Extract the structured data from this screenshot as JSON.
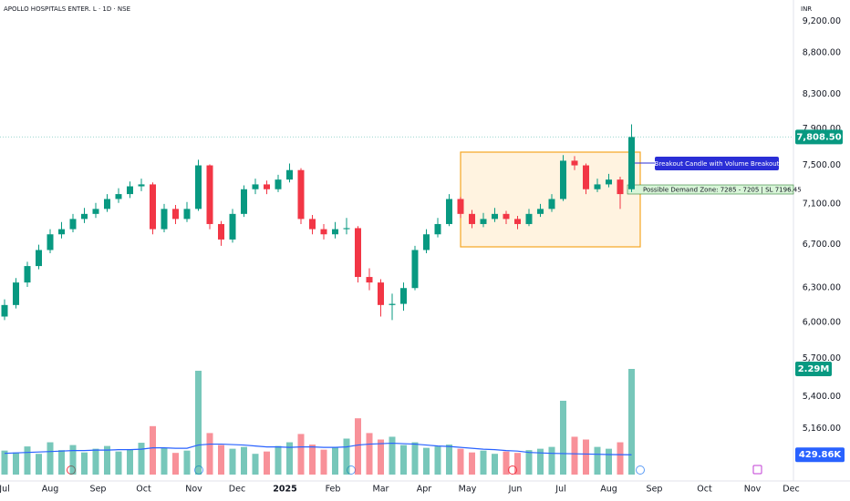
{
  "chart_data": {
    "type": "candlestick",
    "title": "APOLLO HOSPITALS ENTER. L · 1D · NSE",
    "currency": "INR",
    "log_scale": true,
    "up_color": "#089981",
    "down_color": "#f23645",
    "ylim": [
      4777,
      9487
    ],
    "yticks": [
      {
        "value": 9200,
        "label": "9,200.00"
      },
      {
        "value": 8800,
        "label": "8,800.00"
      },
      {
        "value": 8300,
        "label": "8,300.00"
      },
      {
        "value": 7900,
        "label": "7,900.00"
      },
      {
        "value": 7500,
        "label": "7,500.00"
      },
      {
        "value": 7100,
        "label": "7,100.00"
      },
      {
        "value": 6700,
        "label": "6,700.00"
      },
      {
        "value": 6300,
        "label": "6,300.00"
      },
      {
        "value": 6000,
        "label": "6,000.00"
      },
      {
        "value": 5700,
        "label": "5,700.00"
      },
      {
        "value": 5400,
        "label": "5,400.00"
      },
      {
        "value": 5160,
        "label": "5,160.00"
      }
    ],
    "xlim": [
      0,
      348
    ],
    "xticks": [
      {
        "value": 2,
        "label": "Jul"
      },
      {
        "value": 22,
        "label": "Aug"
      },
      {
        "value": 43,
        "label": "Sep"
      },
      {
        "value": 63,
        "label": "Oct"
      },
      {
        "value": 85,
        "label": "Nov"
      },
      {
        "value": 104,
        "label": "Dec"
      },
      {
        "value": 125,
        "label": "2025"
      },
      {
        "value": 146,
        "label": "Feb"
      },
      {
        "value": 167,
        "label": "Mar"
      },
      {
        "value": 186,
        "label": "Apr"
      },
      {
        "value": 205,
        "label": "May"
      },
      {
        "value": 226,
        "label": "Jun"
      },
      {
        "value": 246,
        "label": "Jul"
      },
      {
        "value": 267,
        "label": "Aug"
      },
      {
        "value": 287,
        "label": "Sep"
      },
      {
        "value": 309,
        "label": "Oct"
      },
      {
        "value": 330,
        "label": "Nov"
      },
      {
        "value": 347,
        "label": "Dec"
      }
    ],
    "x": [
      2,
      7,
      12,
      17,
      22,
      27,
      32,
      37,
      42,
      47,
      52,
      57,
      62,
      67,
      72,
      77,
      82,
      87,
      92,
      97,
      102,
      107,
      112,
      117,
      122,
      127,
      132,
      137,
      142,
      147,
      152,
      157,
      162,
      167,
      172,
      177,
      182,
      187,
      192,
      197,
      202,
      207,
      212,
      217,
      222,
      227,
      232,
      237,
      242,
      247,
      252,
      257,
      262,
      267,
      272,
      277
    ],
    "open": [
      6050,
      6150,
      6350,
      6500,
      6650,
      6800,
      6850,
      6950,
      7000,
      7050,
      7150,
      7200,
      7280,
      7300,
      6850,
      7050,
      6950,
      7050,
      7500,
      6900,
      6750,
      7000,
      7250,
      7300,
      7250,
      7350,
      7450,
      6950,
      6850,
      6800,
      6850,
      6860,
      6400,
      6350,
      6150,
      6160,
      6300,
      6650,
      6800,
      6900,
      7150,
      7000,
      6900,
      6950,
      7000,
      6950,
      6900,
      7000,
      7050,
      7150,
      7550,
      7500,
      7250,
      7300,
      7350,
      7250
    ],
    "high": [
      6200,
      6390,
      6540,
      6700,
      6850,
      6920,
      7000,
      7060,
      7110,
      7200,
      7260,
      7330,
      7360,
      7320,
      7100,
      7090,
      7120,
      7560,
      7510,
      6930,
      7050,
      7290,
      7360,
      7340,
      7400,
      7520,
      7470,
      6990,
      6900,
      6920,
      6960,
      6880,
      6480,
      6380,
      6250,
      6350,
      6690,
      6850,
      6960,
      7200,
      7170,
      7040,
      7010,
      7060,
      7030,
      6980,
      7050,
      7100,
      7200,
      7610,
      7600,
      7520,
      7360,
      7410,
      7380,
      7950
    ],
    "low": [
      6020,
      6120,
      6310,
      6470,
      6620,
      6760,
      6820,
      6910,
      6960,
      7020,
      7110,
      7160,
      7230,
      6800,
      6820,
      6900,
      6920,
      7030,
      6850,
      6690,
      6720,
      6970,
      7200,
      7200,
      7220,
      7320,
      6900,
      6800,
      6750,
      6760,
      6800,
      6350,
      6280,
      6050,
      6020,
      6100,
      6280,
      6620,
      6770,
      6880,
      6960,
      6860,
      6870,
      6920,
      6900,
      6850,
      6880,
      6970,
      7020,
      7130,
      7450,
      7200,
      7220,
      7270,
      7050,
      7220
    ],
    "close": [
      6150,
      6350,
      6500,
      6650,
      6800,
      6850,
      6950,
      7000,
      7050,
      7150,
      7200,
      7280,
      7300,
      6850,
      7050,
      6950,
      7050,
      7500,
      6900,
      6750,
      7000,
      7250,
      7300,
      7250,
      7350,
      7450,
      6950,
      6850,
      6800,
      6850,
      6860,
      6400,
      6350,
      6150,
      6160,
      6300,
      6650,
      6800,
      6900,
      7150,
      7000,
      6900,
      6950,
      7000,
      6950,
      6900,
      7000,
      7050,
      7150,
      7550,
      7500,
      7250,
      7300,
      7350,
      7200,
      7808.5
    ],
    "last_price_label": "7,808.50",
    "volume": {
      "values": [
        520000,
        480000,
        610000,
        450000,
        700000,
        530000,
        640000,
        480000,
        560000,
        620000,
        500000,
        540000,
        690000,
        1050000,
        580000,
        470000,
        520000,
        2250000,
        900000,
        640000,
        560000,
        600000,
        450000,
        500000,
        620000,
        700000,
        880000,
        650000,
        540000,
        600000,
        780000,
        1220000,
        900000,
        760000,
        820000,
        640000,
        700000,
        580000,
        610000,
        650000,
        560000,
        480000,
        520000,
        450000,
        500000,
        470000,
        530000,
        560000,
        600000,
        1600000,
        820000,
        760000,
        600000,
        560000,
        700000,
        2290000
      ],
      "last_label": "2.29M"
    },
    "volume_ma": {
      "color": "#2962ff",
      "values": [
        460000,
        470000,
        480000,
        490000,
        500000,
        510000,
        520000,
        520000,
        530000,
        530000,
        540000,
        540000,
        550000,
        580000,
        580000,
        570000,
        570000,
        640000,
        660000,
        660000,
        650000,
        640000,
        620000,
        600000,
        600000,
        590000,
        600000,
        600000,
        590000,
        590000,
        600000,
        640000,
        660000,
        670000,
        680000,
        670000,
        660000,
        640000,
        620000,
        610000,
        590000,
        570000,
        550000,
        540000,
        520000,
        510000,
        480000,
        470000,
        460000,
        455000,
        450000,
        445000,
        440000,
        435000,
        432000,
        429860
      ],
      "last_label": "429.86K"
    },
    "annotations": {
      "breakout": "Breakout Candle with Volume Breakout",
      "demand_zone": "Possible Demand Zone: 7285 - 7205 | SL 7196.45"
    }
  }
}
